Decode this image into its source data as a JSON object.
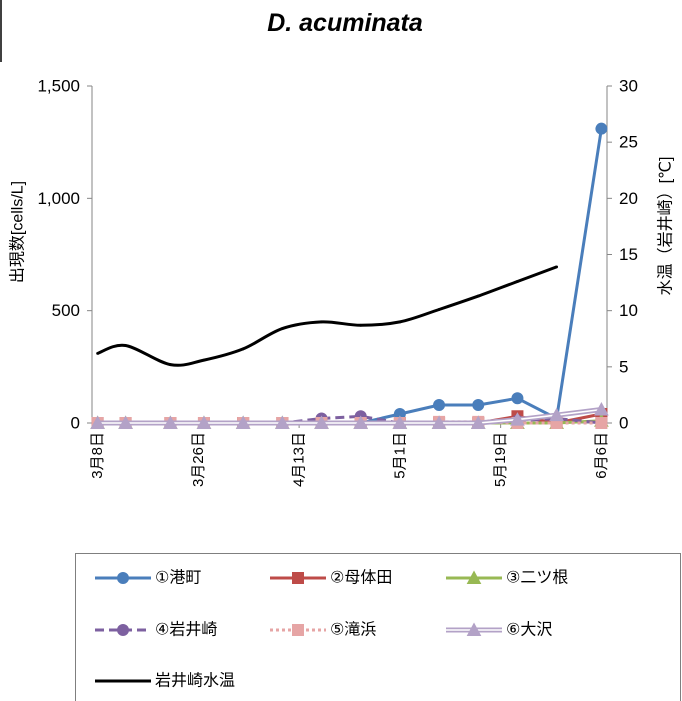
{
  "chart_data": {
    "type": "line",
    "title": "D. acuminata",
    "ylabel": "出現数[cells/L]",
    "y2label": "水温（岩井崎）[℃]",
    "x_range": [
      "3月7日",
      "6月7日"
    ],
    "x_ticks": [
      "3月8日",
      "3月26日",
      "4月13日",
      "5月1日",
      "5月19日",
      "6月6日"
    ],
    "ylim": [
      0,
      1500
    ],
    "y_ticks": [
      "0",
      "500",
      "1,000",
      "1,500"
    ],
    "y2lim": [
      0,
      30
    ],
    "y2_ticks": [
      "0",
      "5",
      "10",
      "15",
      "20",
      "25",
      "30"
    ],
    "grid": false,
    "legend": "bottom",
    "x": [
      "3月8日",
      "3月13日",
      "3月21日",
      "3月27日",
      "4月3日",
      "4月10日",
      "4月17日",
      "4月24日",
      "5月1日",
      "5月8日",
      "5月15日",
      "5月22日",
      "5月29日",
      "6月6日"
    ],
    "series": [
      {
        "name": "①港町",
        "axis": "left",
        "color": "#4A7EBB",
        "line": "solid",
        "marker": "circle",
        "values": [
          0,
          0,
          0,
          0,
          0,
          0,
          0,
          0,
          40,
          80,
          80,
          110,
          20,
          1310
        ]
      },
      {
        "name": "②母体田",
        "axis": "left",
        "color": "#BE4B48",
        "line": "solid",
        "marker": "square",
        "values": [
          0,
          0,
          0,
          0,
          0,
          0,
          0,
          0,
          0,
          0,
          0,
          30,
          0,
          40
        ]
      },
      {
        "name": "③二ツ根",
        "axis": "left",
        "color": "#98B954",
        "line": "solid",
        "marker": "triangle",
        "values": [
          0,
          0,
          0,
          0,
          0,
          0,
          0,
          0,
          0,
          0,
          0,
          0,
          0,
          10
        ]
      },
      {
        "name": "④岩井崎",
        "axis": "left",
        "color": "#7D60A0",
        "line": "dashed",
        "marker": "circle",
        "values": [
          0,
          0,
          0,
          0,
          0,
          0,
          20,
          30,
          0,
          0,
          0,
          10,
          20,
          0
        ]
      },
      {
        "name": "⑤滝浜",
        "axis": "left",
        "color": "#E6A5A5",
        "line": "dotted",
        "marker": "square",
        "values": [
          0,
          0,
          0,
          0,
          0,
          0,
          0,
          0,
          0,
          5,
          5,
          0,
          0,
          0
        ]
      },
      {
        "name": "⑥大沢",
        "axis": "left",
        "color": "#B3A2C7",
        "line": "double",
        "marker": "triangle",
        "values": [
          0,
          0,
          0,
          0,
          0,
          0,
          0,
          0,
          0,
          0,
          0,
          15,
          35,
          60
        ]
      },
      {
        "name": "岩井崎水温",
        "axis": "right",
        "color": "#000000",
        "line": "solid",
        "marker": "none",
        "smooth": true,
        "values": [
          6.2,
          6.9,
          5.2,
          5.6,
          6.6,
          8.4,
          9.0,
          8.7,
          9.0,
          10.1,
          11.3,
          12.6,
          13.9,
          null
        ]
      }
    ]
  }
}
